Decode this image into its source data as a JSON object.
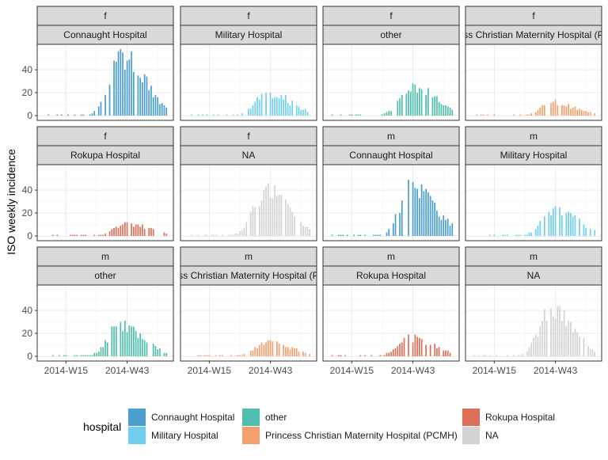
{
  "chart_data": {
    "type": "bar",
    "ylabel": "ISO weekly incidence",
    "xlabel": "",
    "x_ticks": [
      "2014-W15",
      "2014-W43"
    ],
    "y_ticks": [
      0,
      20,
      40
    ],
    "ylim": [
      0,
      58
    ],
    "grid": true,
    "legend": {
      "title": "hospital",
      "position": "bottom",
      "entries": [
        {
          "label": "Connaught Hospital",
          "color": "#4B9FCF"
        },
        {
          "label": "Military Hospital",
          "color": "#70CFEF"
        },
        {
          "label": "other",
          "color": "#4FBFAE"
        },
        {
          "label": "Princess Christian Maternity Hospital (PCMH)",
          "color": "#F4A06D"
        },
        {
          "label": "Rokupa Hospital",
          "color": "#DD6F59"
        },
        {
          "label": "NA",
          "color": "#D3D3D3"
        }
      ]
    },
    "panels": [
      {
        "gender": "f",
        "hospital": "Connaught Hospital",
        "series": "Connaught Hospital",
        "peak_week": 41,
        "peak_value": 55
      },
      {
        "gender": "f",
        "hospital": "Military Hospital",
        "series": "Military Hospital",
        "peak_week": 42,
        "peak_value": 22
      },
      {
        "gender": "f",
        "hospital": "other",
        "series": "other",
        "peak_week": 43,
        "peak_value": 28
      },
      {
        "gender": "f",
        "hospital": "ss Christian Maternity Hospital (P",
        "series": "Princess Christian Maternity Hospital (PCMH)",
        "peak_week": 42,
        "peak_value": 12
      },
      {
        "gender": "f",
        "hospital": "Rokupa Hospital",
        "series": "Rokupa Hospital",
        "peak_week": 43,
        "peak_value": 12
      },
      {
        "gender": "f",
        "hospital": "NA",
        "series": "NA",
        "peak_week": 41,
        "peak_value": 43
      },
      {
        "gender": "m",
        "hospital": "Connaught Hospital",
        "series": "Connaught Hospital",
        "peak_week": 43,
        "peak_value": 47
      },
      {
        "gender": "m",
        "hospital": "Military Hospital",
        "series": "Military Hospital",
        "peak_week": 43,
        "peak_value": 26
      },
      {
        "gender": "m",
        "hospital": "other",
        "series": "other",
        "peak_week": 40,
        "peak_value": 30
      },
      {
        "gender": "m",
        "hospital": "ss Christian Maternity Hospital (P",
        "series": "Princess Christian Maternity Hospital (PCMH)",
        "peak_week": 42,
        "peak_value": 14
      },
      {
        "gender": "m",
        "hospital": "Rokupa Hospital",
        "series": "Rokupa Hospital",
        "peak_week": 42,
        "peak_value": 17
      },
      {
        "gender": "m",
        "hospital": "NA",
        "series": "NA",
        "peak_week": 41,
        "peak_value": 42
      }
    ]
  }
}
